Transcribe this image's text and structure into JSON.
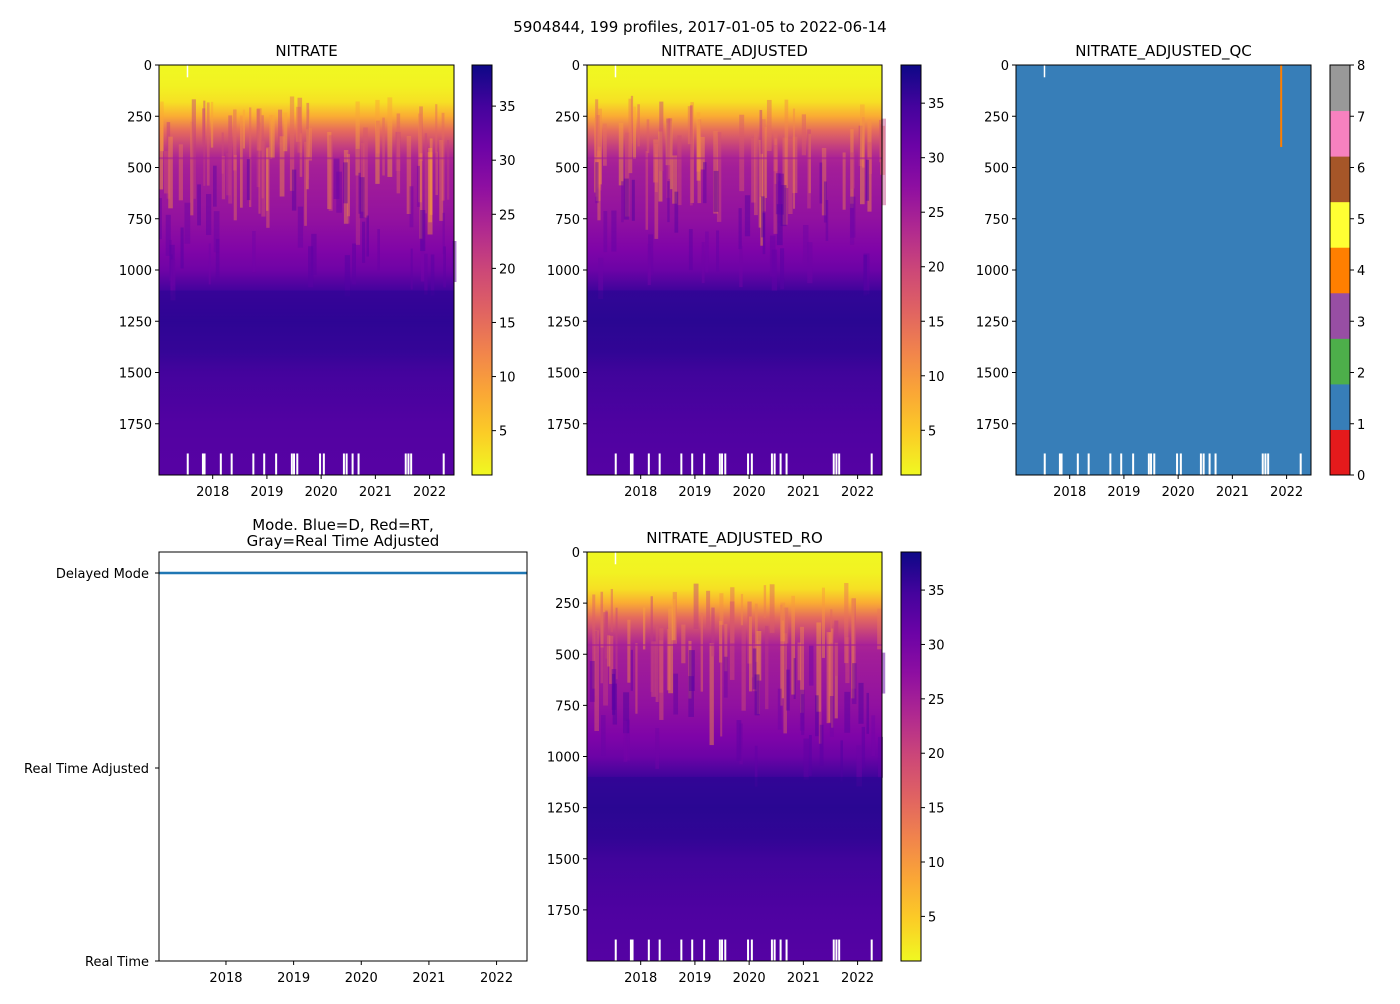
{
  "suptitle": "5904844, 199 profiles, 2017-01-05 to 2022-06-14",
  "chart_data": [
    {
      "type": "heatmap",
      "title": "NITRATE",
      "xlim": [
        2017.01,
        2022.45
      ],
      "ylim": [
        2000,
        0
      ],
      "xticks": [
        "2018",
        "2019",
        "2020",
        "2021",
        "2022"
      ],
      "yticks": [
        "0",
        "250",
        "500",
        "750",
        "1000",
        "1250",
        "1500",
        "1750"
      ],
      "colormap": "plasma_r",
      "clim": [
        0.9,
        38.8
      ],
      "colorbar_ticks": [
        "5",
        "10",
        "15",
        "20",
        "25",
        "30",
        "35"
      ],
      "mean_profile": {
        "depth": [
          0,
          100,
          180,
          250,
          320,
          400,
          450,
          500,
          750,
          900,
          1000,
          1100,
          1250,
          1400,
          1500,
          1750,
          2000
        ],
        "value": [
          1,
          1.5,
          3,
          8,
          15,
          21,
          24,
          25,
          27,
          29,
          31,
          35,
          36.5,
          36,
          35,
          34,
          33.5
        ]
      }
    },
    {
      "type": "heatmap",
      "title": "NITRATE_ADJUSTED",
      "xlim": [
        2017.01,
        2022.45
      ],
      "ylim": [
        2000,
        0
      ],
      "xticks": [
        "2018",
        "2019",
        "2020",
        "2021",
        "2022"
      ],
      "yticks": [
        "0",
        "250",
        "500",
        "750",
        "1000",
        "1250",
        "1500",
        "1750"
      ],
      "colormap": "plasma_r",
      "clim": [
        0.9,
        38.5
      ],
      "colorbar_ticks": [
        "5",
        "10",
        "15",
        "20",
        "25",
        "30",
        "35"
      ],
      "mean_profile": {
        "depth": [
          0,
          100,
          180,
          250,
          320,
          400,
          450,
          500,
          750,
          900,
          1000,
          1100,
          1250,
          1400,
          1500,
          1750,
          2000
        ],
        "value": [
          1,
          1.5,
          3,
          8,
          15,
          21,
          24,
          25,
          27,
          29,
          31,
          35,
          36.5,
          36,
          35,
          34,
          33.5
        ]
      }
    },
    {
      "type": "heatmap",
      "title": "NITRATE_ADJUSTED_QC",
      "xlim": [
        2017.01,
        2022.45
      ],
      "ylim": [
        2000,
        0
      ],
      "xticks": [
        "2018",
        "2019",
        "2020",
        "2021",
        "2022"
      ],
      "yticks": [
        "0",
        "250",
        "500",
        "750",
        "1000",
        "1250",
        "1500",
        "1750"
      ],
      "colormap": "Set1_qc",
      "clim": [
        0,
        8
      ],
      "colorbar_ticks": [
        "0",
        "1",
        "2",
        "3",
        "4",
        "5",
        "6",
        "7",
        "8"
      ],
      "qc_colors": [
        "#e41a1c",
        "#377eb8",
        "#4daf4a",
        "#984ea3",
        "#ff7f00",
        "#ffff33",
        "#a65628",
        "#f781bf",
        "#999999"
      ],
      "base_qc": 1,
      "anomalies": [
        {
          "date": 2021.9,
          "depth_range": [
            0,
            400
          ],
          "qc": 4
        }
      ]
    },
    {
      "type": "line",
      "title": "Mode. Blue=D, Red=RT,\nGray=Real Time Adjusted",
      "title_lines": [
        "Mode. Blue=D, Red=RT,",
        "Gray=Real Time Adjusted"
      ],
      "xlim": [
        2017.01,
        2022.45
      ],
      "xticks": [
        "2018",
        "2019",
        "2020",
        "2021",
        "2022"
      ],
      "yticks": [
        "Delayed Mode",
        "Real Time Adjusted",
        "Real Time"
      ],
      "series": [
        {
          "name": "Delayed Mode",
          "color": "#1f77b4",
          "x": [
            2017.01,
            2022.45
          ],
          "y": [
            "Delayed Mode",
            "Delayed Mode"
          ]
        }
      ]
    },
    {
      "type": "heatmap",
      "title": "NITRATE_ADJUSTED_RO",
      "xlim": [
        2017.01,
        2022.45
      ],
      "ylim": [
        2000,
        0
      ],
      "xticks": [
        "2018",
        "2019",
        "2020",
        "2021",
        "2022"
      ],
      "yticks": [
        "0",
        "250",
        "500",
        "750",
        "1000",
        "1250",
        "1500",
        "1750"
      ],
      "colormap": "plasma_r",
      "clim": [
        0.9,
        38.5
      ],
      "colorbar_ticks": [
        "5",
        "10",
        "15",
        "20",
        "25",
        "30",
        "35"
      ],
      "mean_profile": {
        "depth": [
          0,
          100,
          180,
          250,
          320,
          400,
          450,
          500,
          750,
          900,
          1000,
          1100,
          1250,
          1400,
          1500,
          1750,
          2000
        ],
        "value": [
          1,
          1.5,
          3,
          8,
          15,
          21,
          24,
          25,
          27,
          29,
          31,
          35,
          36.5,
          36,
          35,
          34,
          33.5
        ]
      }
    }
  ],
  "missing_deep_profiles": [
    2017.54,
    2017.82,
    2017.85,
    2018.15,
    2018.35,
    2018.75,
    2018.95,
    2019.17,
    2019.46,
    2019.5,
    2019.56,
    2019.98,
    2020.05,
    2020.42,
    2020.47,
    2020.58,
    2020.69,
    2021.56,
    2021.61,
    2021.66,
    2022.26
  ]
}
